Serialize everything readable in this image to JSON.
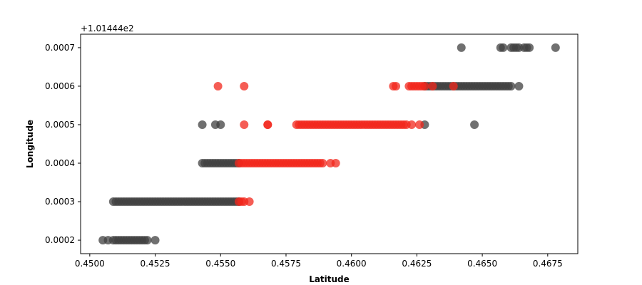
{
  "chart_data": {
    "type": "scatter",
    "title": "",
    "xlabel": "Latitude",
    "ylabel": "Longitude",
    "y_offset_label": "+1.01444e2",
    "xlim": [
      0.44965,
      0.46865
    ],
    "ylim": [
      0.000165,
      0.000735
    ],
    "grid": false,
    "x_ticks": [
      0.45,
      0.4525,
      0.455,
      0.4575,
      0.46,
      0.4625,
      0.465,
      0.4675
    ],
    "x_tick_labels": [
      "0.4500",
      "0.4525",
      "0.4550",
      "0.4575",
      "0.4600",
      "0.4625",
      "0.4650",
      "0.4675"
    ],
    "y_ticks": [
      0.0002,
      0.0003,
      0.0004,
      0.0005,
      0.0006,
      0.0007
    ],
    "y_tick_labels": [
      "0.0002",
      "0.0003",
      "0.0004",
      "0.0005",
      "0.0006",
      "0.0007"
    ],
    "colors": {
      "gray": "#404040",
      "red": "#f2271c"
    },
    "series": [
      {
        "color_key": "gray",
        "groups": [
          {
            "y": 0.0002,
            "x": [
              0.4505,
              0.4507,
              0.4509,
              0.451,
              0.4511,
              0.4512,
              0.4513,
              0.4514,
              0.4515,
              0.4516,
              0.4517,
              0.4518,
              0.4519,
              0.452,
              0.4521,
              0.4522,
              0.4525
            ]
          },
          {
            "y": 0.0003,
            "x_range": [
              0.4509,
              0.4557
            ],
            "step": 0.0001
          },
          {
            "y": 0.0004,
            "x_range": [
              0.4543,
              0.4557
            ],
            "step": 0.0001
          },
          {
            "y": 0.0005,
            "x": [
              0.4543,
              0.4548,
              0.455,
              0.4628,
              0.4647
            ]
          },
          {
            "y": 0.0006,
            "x_range": [
              0.4628,
              0.4661
            ],
            "step": 0.0001,
            "extra": [
              0.4664
            ]
          },
          {
            "y": 0.0007,
            "x": [
              0.4642,
              0.4657,
              0.4658,
              0.4661,
              0.4662,
              0.4663,
              0.4664,
              0.4666,
              0.4667,
              0.4668,
              0.4678
            ]
          }
        ]
      },
      {
        "color_key": "red",
        "groups": [
          {
            "y": 0.0003,
            "x": [
              0.4557,
              0.4558,
              0.4559,
              0.4561
            ]
          },
          {
            "y": 0.0004,
            "x_range": [
              0.4557,
              0.4589
            ],
            "step": 0.0001,
            "extra": [
              0.4592,
              0.4594
            ]
          },
          {
            "y": 0.0005,
            "x": [
              0.4559,
              0.4568,
              0.4568
            ],
            "x_range": [
              0.4579,
              0.4621
            ],
            "step": 0.0001,
            "extra": [
              0.4623,
              0.4626
            ]
          },
          {
            "y": 0.0006,
            "x": [
              0.4549,
              0.4559,
              0.4616,
              0.4617
            ],
            "x_range": [
              0.4622,
              0.4628
            ],
            "step": 0.0001,
            "extra": [
              0.4631,
              0.4639
            ]
          }
        ]
      }
    ]
  }
}
